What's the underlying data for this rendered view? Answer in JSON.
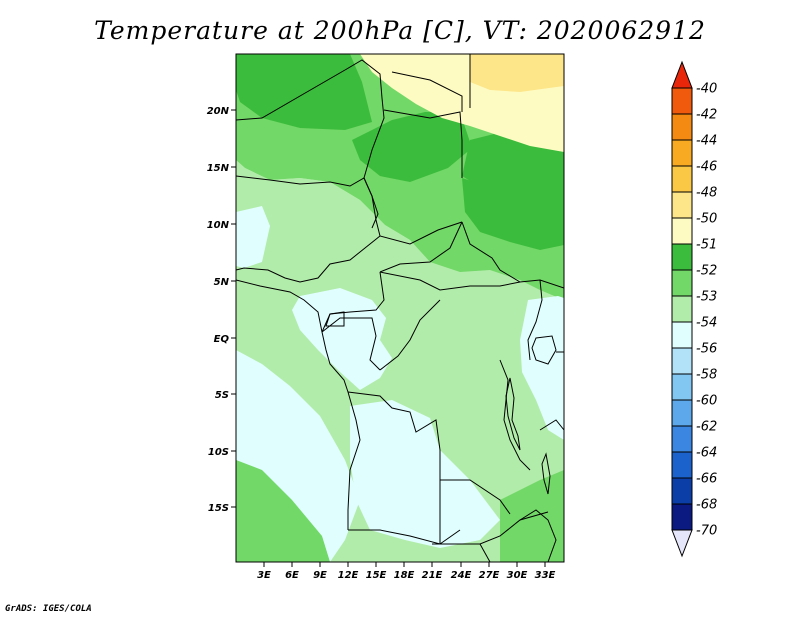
{
  "title": "Temperature at 200hPa [C], VT: 2020062912",
  "footer": "GrADS: IGES/COLA",
  "map": {
    "lat_labels": [
      "20N",
      "15N",
      "10N",
      "5N",
      "EQ",
      "5S",
      "10S",
      "15S"
    ],
    "lon_labels": [
      "3E",
      "6E",
      "9E",
      "12E",
      "15E",
      "18E",
      "21E",
      "24E",
      "27E",
      "30E",
      "33E"
    ]
  },
  "colorbar": {
    "labels": [
      "-40",
      "-42",
      "-44",
      "-46",
      "-48",
      "-50",
      "-51",
      "-52",
      "-53",
      "-54",
      "-56",
      "-58",
      "-60",
      "-62",
      "-64",
      "-66",
      "-68",
      "-70"
    ],
    "colors": {
      "c_40": "#e8260a",
      "c_42": "#f05a0c",
      "c_44": "#f48a12",
      "c_46": "#f8aa22",
      "c_48": "#fbc846",
      "c_50": "#fde68a",
      "c_51": "#fefbc2",
      "c_52": "#3cbc3c",
      "c_53": "#72d867",
      "c_54": "#b2ecaa",
      "c_56": "#e0fefe",
      "c_58": "#b2e2f8",
      "c_60": "#82c6f2",
      "c_62": "#5ca8ea",
      "c_64": "#3a86e0",
      "c_66": "#1c62cc",
      "c_68": "#0c3ea8",
      "c_70": "#0a1a80",
      "under": "#e6e6fa"
    }
  }
}
